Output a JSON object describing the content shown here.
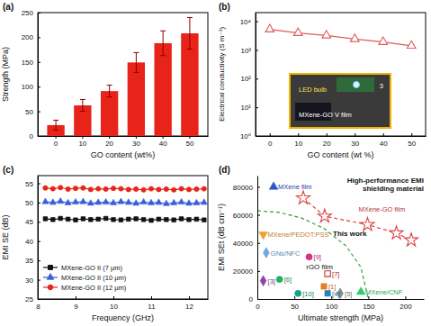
{
  "chart_data": [
    {
      "type": "bar",
      "title": "(a)",
      "x_label": "GO content (wt%)",
      "y_label": "Strength (MPa)",
      "categories": [
        "0",
        "10",
        "20",
        "30",
        "40",
        "50"
      ],
      "values": [
        22,
        62,
        91,
        149,
        188,
        208
      ],
      "errors": [
        10,
        12,
        12,
        20,
        25,
        32
      ],
      "color": "#e8231a",
      "ylim": [
        0,
        250
      ],
      "yticks": [
        0,
        50,
        100,
        150,
        200,
        250
      ]
    },
    {
      "type": "line",
      "title": "(b)",
      "x_label": "GO content (wt %)",
      "y_label": "Electrical conductivity (S m⁻¹)",
      "x": [
        0,
        10,
        20,
        30,
        40,
        50
      ],
      "values": [
        5200,
        3900,
        3200,
        2400,
        1900,
        1400
      ],
      "color": "#e05a5a",
      "marker": "open-triangle",
      "log": "y",
      "xlim": [
        -5,
        55
      ],
      "xticks": [
        0,
        10,
        20,
        30,
        40,
        50
      ],
      "ylim": [
        1,
        20000
      ],
      "yticks": [
        {
          "value": 1,
          "label": "10⁰"
        },
        {
          "value": 10,
          "label": "10¹"
        },
        {
          "value": 100,
          "label": "10²"
        },
        {
          "value": 1000,
          "label": "10³"
        },
        {
          "value": 10000,
          "label": "10⁴"
        }
      ],
      "annotations": [
        "LED bulb",
        "MXene-GO V film",
        "3"
      ]
    },
    {
      "type": "line",
      "title": "(c)",
      "x_label": "Frequency (GHz)",
      "y_label": "EMI SE (dB)",
      "x": [
        8.2,
        8.4,
        8.6,
        8.8,
        9.0,
        9.2,
        9.4,
        9.6,
        9.8,
        10.0,
        10.2,
        10.4,
        10.6,
        10.8,
        11.0,
        11.2,
        11.4,
        11.6,
        11.8,
        12.0,
        12.2,
        12.4
      ],
      "series": [
        {
          "name": "MXene-GO II (7 μm)",
          "color": "#111111",
          "marker": "square",
          "values": [
            45.8,
            45.6,
            45.9,
            45.7,
            45.5,
            45.8,
            45.6,
            45.7,
            45.9,
            45.6,
            45.5,
            45.7,
            45.8,
            45.6,
            45.4,
            45.7,
            45.6,
            45.5,
            45.8,
            45.6,
            45.7,
            45.5
          ]
        },
        {
          "name": "MXene-GO II (10 μm)",
          "color": "#3b5fd9",
          "marker": "triangle",
          "values": [
            50.2,
            50.0,
            50.3,
            49.9,
            50.1,
            50.2,
            49.8,
            50.0,
            50.1,
            49.9,
            50.2,
            50.0,
            49.8,
            50.1,
            49.9,
            50.0,
            49.7,
            49.9,
            50.1,
            49.8,
            49.9,
            50.0
          ]
        },
        {
          "name": "MXene-GO II (12 μm)",
          "color": "#e8231a",
          "marker": "circle",
          "values": [
            53.8,
            53.6,
            53.9,
            53.5,
            53.7,
            53.8,
            53.4,
            53.6,
            53.5,
            53.7,
            53.6,
            53.4,
            53.5,
            53.3,
            53.6,
            53.4,
            53.5,
            53.3,
            53.6,
            53.4,
            53.5,
            53.6
          ]
        }
      ],
      "xlim": [
        8,
        12.5
      ],
      "xticks": [
        8,
        9,
        10,
        11,
        12
      ],
      "ylim": [
        25,
        57
      ],
      "yticks": [
        25,
        30,
        35,
        40,
        45,
        50,
        55
      ],
      "legend": "lower left"
    },
    {
      "type": "scatter",
      "title": "(d)",
      "x_label": "Ultimate strength (MPa)",
      "y_label": "EMI SEt (dB cm⁻¹)",
      "series": [
        {
          "type": "line",
          "color": "#2e9e3e",
          "line_style": "dashed",
          "x": [
            0,
            30,
            60,
            90,
            120,
            140,
            150
          ],
          "values": [
            63000,
            61700,
            57700,
            50400,
            37800,
            22600,
            0
          ]
        },
        {
          "name": "MXene film",
          "color": "#3355cc",
          "marker": "triangle",
          "x": [
            22
          ],
          "values": [
            80000
          ]
        },
        {
          "name": "MXene-GO film",
          "color": "#e04040",
          "marker": "open-star",
          "line_style": "dashed",
          "x": [
            62,
            91,
            149,
            188,
            208
          ],
          "values": [
            72000,
            59000,
            53000,
            47000,
            42000
          ]
        },
        {
          "name": "MXene/PEDOT:PSS",
          "color": "#f0a030",
          "marker": "triangle-down",
          "x": [
            8
          ],
          "values": [
            46000
          ]
        },
        {
          "name": "GNs/NFC",
          "color": "#6fa8dc",
          "marker": "diamond",
          "x": [
            12
          ],
          "values": [
            33000
          ]
        },
        {
          "name": "[3]",
          "color": "#8e44ad",
          "marker": "diamond",
          "x": [
            8
          ],
          "values": [
            13000
          ]
        },
        {
          "name": "[6]",
          "color": "#27ae60",
          "marker": "circle",
          "x": [
            30
          ],
          "values": [
            14000
          ]
        },
        {
          "name": "[9]",
          "color": "#d63384",
          "marker": "circle",
          "x": [
            70
          ],
          "values": [
            30000
          ]
        },
        {
          "name": "[7]",
          "color": "#c0392b",
          "marker": "open-square",
          "x": [
            95
          ],
          "values": [
            18000
          ]
        },
        {
          "name": "[1]",
          "color": "#e67e22",
          "marker": "square",
          "x": [
            90
          ],
          "values": [
            9000
          ]
        },
        {
          "name": "[10]",
          "color": "#16a085",
          "marker": "circle",
          "x": [
            55
          ],
          "values": [
            4000
          ]
        },
        {
          "name": "[4]",
          "color": "#2980b9",
          "marker": "square",
          "x": [
            95
          ],
          "values": [
            4000
          ]
        },
        {
          "name": "[5]",
          "color": "#7f8c8d",
          "marker": "diamond",
          "x": [
            112
          ],
          "values": [
            4000
          ]
        },
        {
          "name": "MXene/CNF",
          "color": "#2ecc71",
          "marker": "triangle",
          "x": [
            140
          ],
          "values": [
            5000
          ]
        }
      ],
      "xlim": [
        0,
        225
      ],
      "xticks": [
        0,
        50,
        100,
        150,
        200
      ],
      "ylim": [
        0,
        88000
      ],
      "yticks": [
        0,
        20000,
        40000,
        60000,
        80000
      ],
      "annotations": [
        "High-performance EMI",
        "shielding material",
        "This work",
        "rGO film"
      ]
    }
  ]
}
